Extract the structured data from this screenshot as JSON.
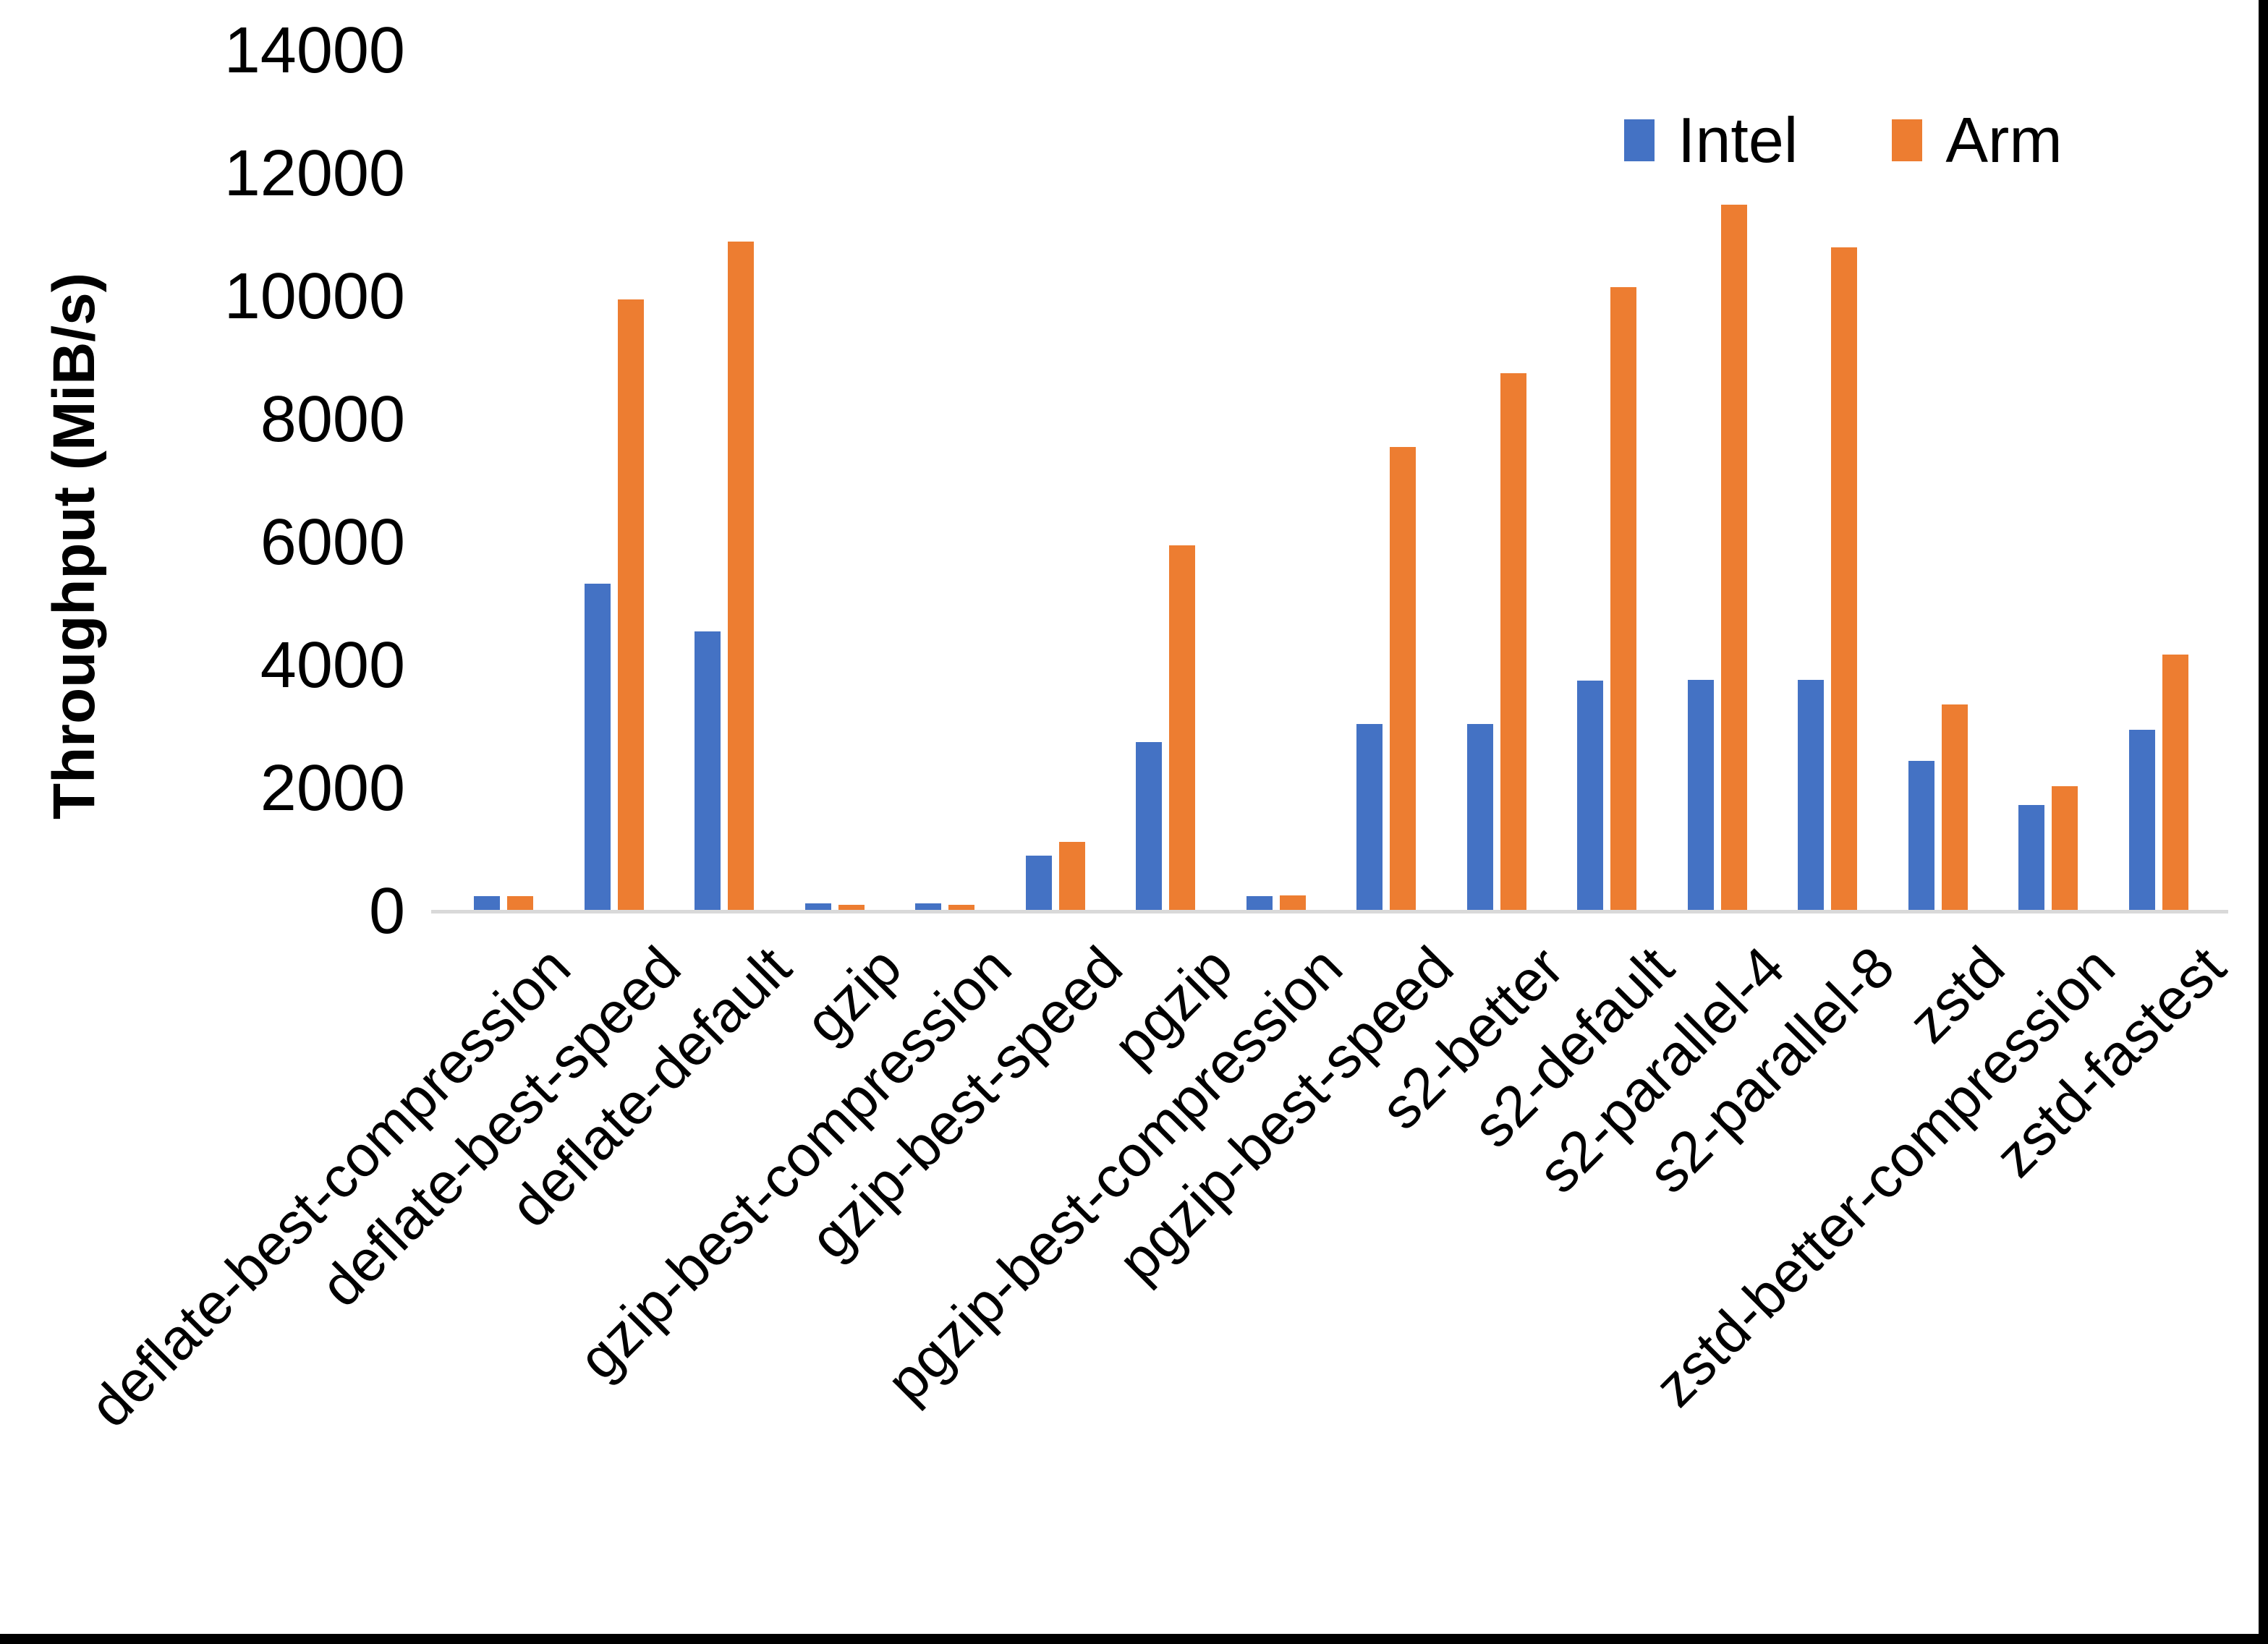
{
  "chart_data": {
    "type": "bar",
    "title": "",
    "xlabel": "",
    "ylabel": "Throughput (MiB/s)",
    "ylim": [
      0,
      14000
    ],
    "y_ticks": [
      0,
      2000,
      4000,
      6000,
      8000,
      10000,
      12000,
      14000
    ],
    "grid": false,
    "legend_position": "top-right",
    "categories": [
      "deflate-best-compression",
      "deflate-best-speed",
      "deflate-default",
      "gzip",
      "gzip-best-compression",
      "gzip-best-speed",
      "pgzip",
      "pgzip-best-compression",
      "pgzip-best-speed",
      "s2-better",
      "s2-default",
      "s2-parallel-4",
      "s2-parallel-8",
      "zstd",
      "zstd-better-compression",
      "zstd-fastest"
    ],
    "series": [
      {
        "name": "Intel",
        "color": "#4472C4",
        "values": [
          250,
          5330,
          4550,
          130,
          130,
          910,
          2750,
          250,
          3050,
          3050,
          3750,
          3760,
          3760,
          2450,
          1730,
          2950
        ]
      },
      {
        "name": "Arm",
        "color": "#ED7D31",
        "values": [
          250,
          9950,
          10900,
          105,
          110,
          1130,
          5950,
          260,
          7550,
          8750,
          10150,
          11500,
          10800,
          3370,
          2030,
          4180
        ]
      }
    ]
  }
}
